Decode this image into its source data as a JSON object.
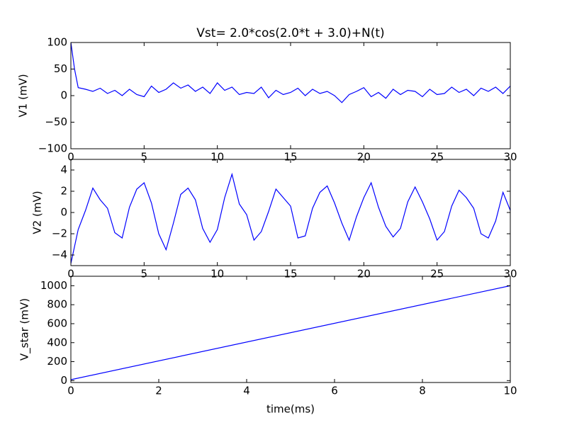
{
  "chart_data": [
    {
      "type": "line",
      "title": "Vst= 2.0*cos(2.0*t + 3.0)+N(t)",
      "ylabel": "V1 (mV)",
      "color": "#0000ff",
      "x": [
        0,
        0.25,
        0.5,
        1,
        1.5,
        2,
        2.5,
        3,
        3.5,
        4,
        4.5,
        5,
        5.5,
        6,
        6.5,
        7,
        7.5,
        8,
        8.5,
        9,
        9.5,
        10,
        10.5,
        11,
        11.5,
        12,
        12.5,
        13,
        13.5,
        14,
        14.5,
        15,
        15.5,
        16,
        16.5,
        17,
        17.5,
        18,
        18.5,
        19,
        19.5,
        20,
        20.5,
        21,
        21.5,
        22,
        22.5,
        23,
        23.5,
        24,
        24.5,
        25,
        25.5,
        26,
        26.5,
        27,
        27.5,
        28,
        28.5,
        29,
        29.5,
        30
      ],
      "values": [
        100,
        50,
        15,
        12,
        8,
        14,
        4,
        10,
        0,
        12,
        2,
        -2,
        18,
        6,
        12,
        24,
        14,
        20,
        8,
        16,
        4,
        24,
        10,
        16,
        2,
        6,
        4,
        16,
        -4,
        10,
        2,
        6,
        14,
        0,
        12,
        4,
        8,
        0,
        -13,
        2,
        8,
        15,
        -2,
        6,
        -5,
        12,
        2,
        10,
        8,
        -2,
        12,
        2,
        4,
        16,
        6,
        12,
        0,
        14,
        8,
        16,
        4,
        18
      ],
      "xlim": [
        0,
        30
      ],
      "ylim": [
        -100,
        100
      ],
      "xticks": [
        0,
        5,
        10,
        15,
        20,
        25,
        30
      ],
      "yticks": [
        {
          "value": -100,
          "label": "−100"
        },
        {
          "value": -50,
          "label": "−50"
        },
        0,
        50,
        100
      ]
    },
    {
      "type": "line",
      "ylabel": "V2 (mV)",
      "color": "#0000ff",
      "x": [
        0,
        0.25,
        0.5,
        1,
        1.5,
        2,
        2.5,
        3,
        3.5,
        4,
        4.5,
        5,
        5.5,
        6,
        6.5,
        7,
        7.5,
        8,
        8.5,
        9,
        9.5,
        10,
        10.5,
        11,
        11.5,
        12,
        12.5,
        13,
        13.5,
        14,
        14.5,
        15,
        15.5,
        16,
        16.5,
        17,
        17.5,
        18,
        18.5,
        19,
        19.5,
        20,
        20.5,
        21,
        21.5,
        22,
        22.5,
        23,
        23.5,
        24,
        24.5,
        25,
        25.5,
        26,
        26.5,
        27,
        27.5,
        28,
        28.5,
        29,
        29.5,
        30
      ],
      "values": [
        -4.8,
        -3.2,
        -1.6,
        0.2,
        2.3,
        1.2,
        0.4,
        -1.9,
        -2.4,
        0.5,
        2.2,
        2.8,
        0.9,
        -2.0,
        -3.5,
        -1.0,
        1.7,
        2.3,
        1.2,
        -1.5,
        -2.8,
        -1.6,
        1.4,
        3.6,
        0.8,
        -0.2,
        -2.6,
        -1.8,
        0.1,
        2.2,
        1.4,
        0.6,
        -2.4,
        -2.2,
        0.4,
        1.9,
        2.5,
        0.9,
        -1.0,
        -2.6,
        -0.4,
        1.4,
        2.8,
        0.5,
        -1.3,
        -2.3,
        -1.5,
        1.0,
        2.4,
        1.0,
        -0.6,
        -2.6,
        -1.8,
        0.6,
        2.1,
        1.4,
        0.4,
        -2.0,
        -2.4,
        -0.8,
        1.9,
        0.2
      ],
      "xlim": [
        0,
        30
      ],
      "ylim": [
        -5,
        5
      ],
      "xticks": [
        0,
        5,
        10,
        15,
        20,
        25,
        30
      ],
      "yticks": [
        {
          "value": -4,
          "label": "−4"
        },
        {
          "value": -2,
          "label": "−2"
        },
        0,
        2,
        4
      ]
    },
    {
      "type": "line",
      "ylabel": "V_star (mV)",
      "xlabel": "time(ms)",
      "color": "#0000ff",
      "x": [
        0,
        10
      ],
      "values": [
        10,
        1000
      ],
      "xlim": [
        0,
        10
      ],
      "ylim": [
        -20,
        1100
      ],
      "xticks": [
        0,
        2,
        4,
        6,
        8,
        10
      ],
      "yticks": [
        0,
        200,
        400,
        600,
        800,
        1000
      ]
    }
  ]
}
